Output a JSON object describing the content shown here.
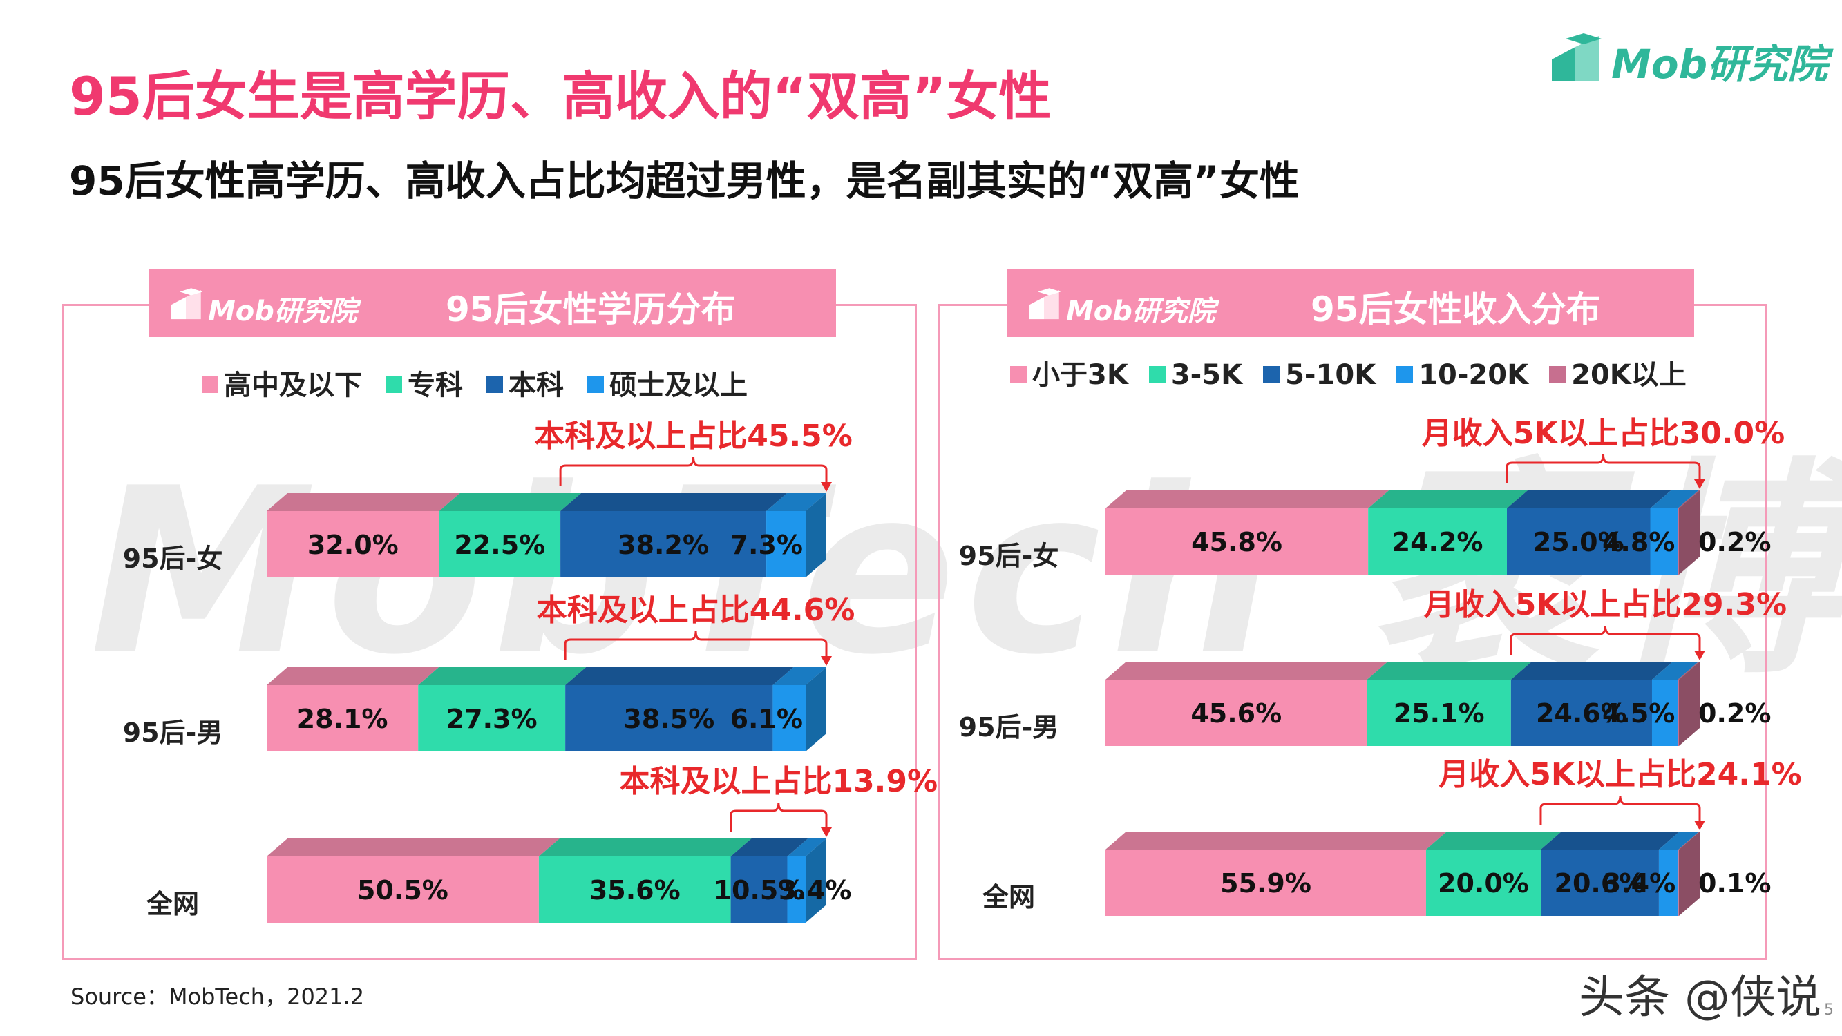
{
  "title": "95后女生是高学历、高收入的“双高”女性",
  "subtitle": "95后女性高学历、高收入占比均超过男性，是名副其实的“双高”女性",
  "brand": {
    "name": "Mob研究院",
    "color": "#2fb79a"
  },
  "watermark": "MobTech 袤博",
  "source": "Source：MobTech，2021.2",
  "footer_watermark": "头条 @侠说",
  "page_number": "5",
  "colors": {
    "title": "#f0396f",
    "pink": "#f78fb1",
    "teal": "#2fdcab",
    "navy": "#1c64ad",
    "blue": "#1e96ec",
    "mauve": "#c76f8f",
    "annotation": "#e8282b"
  },
  "chart_data": [
    {
      "type": "bar",
      "orientation": "horizontal",
      "stacked": true,
      "title": "95后女性学历分布",
      "brand": "Mob研究院",
      "categories": [
        "95后-女",
        "95后-男",
        "全网"
      ],
      "series": [
        {
          "name": "高中及以下",
          "color": "#f78fb1",
          "values": [
            32.0,
            28.1,
            50.5
          ],
          "labels": [
            "32.0%",
            "28.1%",
            "50.5%"
          ]
        },
        {
          "name": "专科",
          "color": "#2fdcab",
          "values": [
            22.5,
            27.3,
            35.6
          ],
          "labels": [
            "22.5%",
            "27.3%",
            "35.6%"
          ]
        },
        {
          "name": "本科",
          "color": "#1c64ad",
          "values": [
            38.2,
            38.5,
            10.5
          ],
          "labels": [
            "38.2%",
            "38.5%",
            "10.5%"
          ]
        },
        {
          "name": "硕士及以上",
          "color": "#1e96ec",
          "values": [
            7.3,
            6.1,
            3.4
          ],
          "labels": [
            "7.3%",
            "6.1%",
            "3.4%"
          ]
        }
      ],
      "annotations": [
        "本科及以上占比45.5%",
        "本科及以上占比44.6%",
        "本科及以上占比13.9%"
      ],
      "legend_position": "top"
    },
    {
      "type": "bar",
      "orientation": "horizontal",
      "stacked": true,
      "title": "95后女性收入分布",
      "brand": "Mob研究院",
      "categories": [
        "95后-女",
        "95后-男",
        "全网"
      ],
      "series": [
        {
          "name": "小于3K",
          "color": "#f78fb1",
          "values": [
            45.8,
            45.6,
            55.9
          ],
          "labels": [
            "45.8%",
            "45.6%",
            "55.9%"
          ]
        },
        {
          "name": "3-5K",
          "color": "#2fdcab",
          "values": [
            24.2,
            25.1,
            20.0
          ],
          "labels": [
            "24.2%",
            "25.1%",
            "20.0%"
          ]
        },
        {
          "name": "5-10K",
          "color": "#1c64ad",
          "values": [
            25.0,
            24.6,
            20.6
          ],
          "labels": [
            "25.0%",
            "24.6%",
            "20.6%"
          ]
        },
        {
          "name": "10-20K",
          "color": "#1e96ec",
          "values": [
            4.8,
            4.5,
            3.4
          ],
          "labels": [
            "4.8%",
            "4.5%",
            "3.4%"
          ]
        },
        {
          "name": "20K以上",
          "color": "#c76f8f",
          "values": [
            0.2,
            0.2,
            0.1
          ],
          "labels": [
            "0.2%",
            "0.2%",
            "0.1%"
          ]
        }
      ],
      "annotations": [
        "月收入5K以上占比30.0%",
        "月收入5K以上占比29.3%",
        "月收入5K以上占比24.1%"
      ],
      "legend_position": "top"
    }
  ]
}
